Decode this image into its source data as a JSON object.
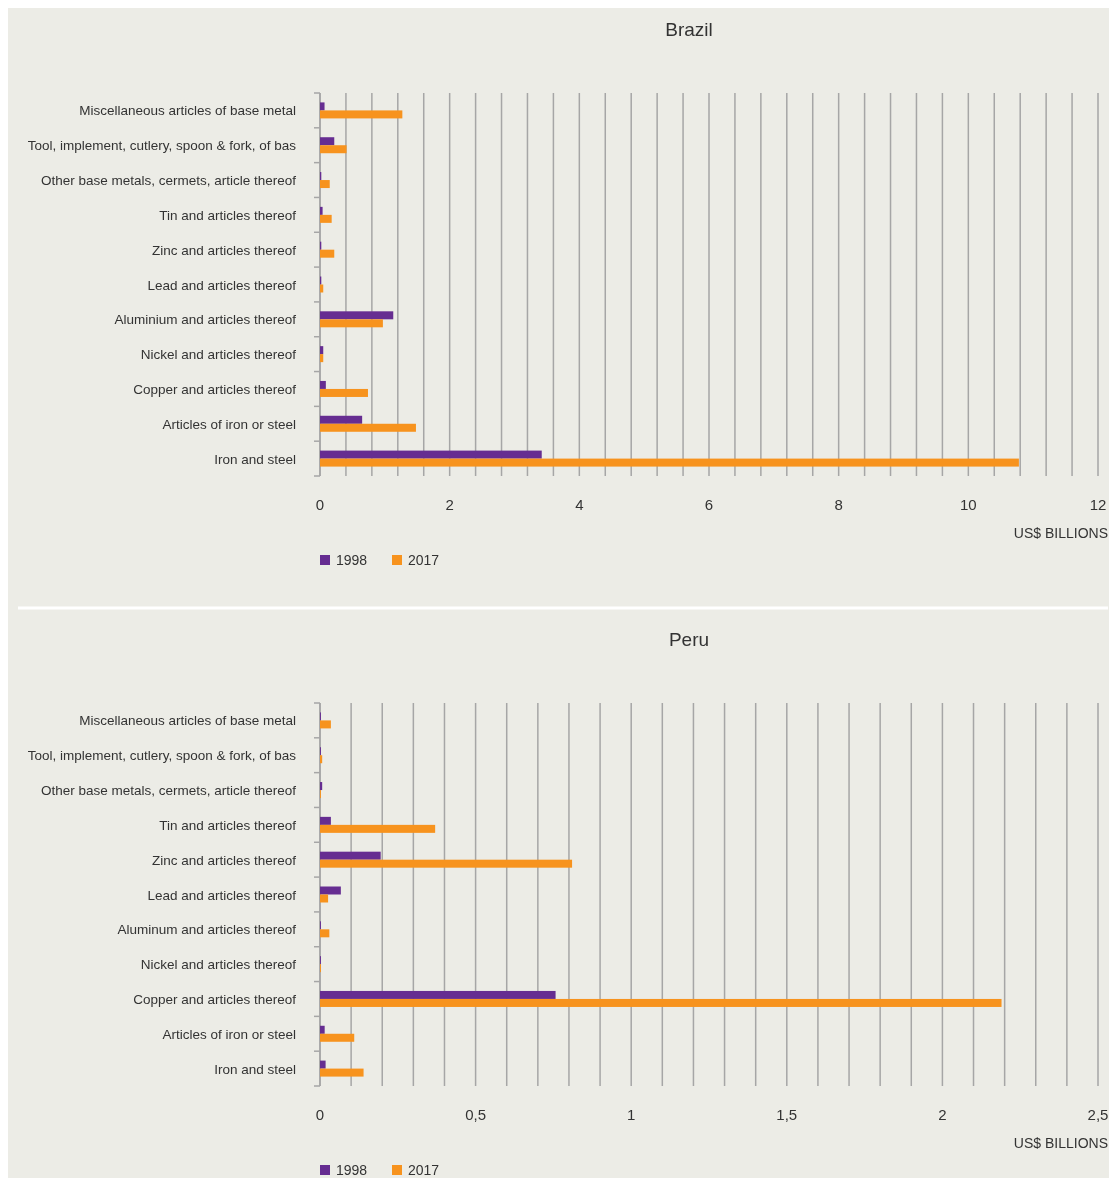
{
  "chart_data": [
    {
      "type": "bar",
      "orientation": "horizontal",
      "title": "Brazil",
      "xlabel": "US$ BILLIONS",
      "categories": [
        "Miscellaneous articles of base metal",
        "Tool, implement, cutlery, spoon & fork, of bas",
        "Other base metals, cermets, article thereof",
        "Tin and articles thereof",
        "Zinc and articles thereof",
        "Lead and articles thereof",
        "Aluminium and articles thereof",
        "Nickel and articles thereof",
        "Copper and articles thereof",
        "Articles of iron or steel",
        "Iron and steel"
      ],
      "series": [
        {
          "name": "1998",
          "color": "#662d91",
          "values": [
            0.07,
            0.22,
            0.02,
            0.04,
            0.02,
            0.02,
            1.13,
            0.05,
            0.09,
            0.65,
            3.42
          ]
        },
        {
          "name": "2017",
          "color": "#f7931e",
          "values": [
            1.27,
            0.41,
            0.15,
            0.18,
            0.22,
            0.05,
            0.97,
            0.05,
            0.74,
            1.48,
            10.78
          ]
        }
      ],
      "xlim": [
        0,
        12
      ],
      "xticks": [
        0,
        {
          "value": 0.4,
          "label": null
        },
        {
          "value": 0.8,
          "label": null
        },
        {
          "value": 1.2,
          "label": null
        },
        {
          "value": 1.6,
          "label": null
        },
        2,
        {
          "value": 2.4,
          "label": null
        },
        {
          "value": 2.8,
          "label": null
        },
        {
          "value": 3.2,
          "label": null
        },
        {
          "value": 3.6,
          "label": null
        },
        4,
        {
          "value": 4.4,
          "label": null
        },
        {
          "value": 4.8,
          "label": null
        },
        {
          "value": 5.2,
          "label": null
        },
        {
          "value": 5.6,
          "label": null
        },
        6,
        {
          "value": 6.4,
          "label": null
        },
        {
          "value": 6.8,
          "label": null
        },
        {
          "value": 7.2,
          "label": null
        },
        {
          "value": 7.6,
          "label": null
        },
        8,
        {
          "value": 8.4,
          "label": null
        },
        {
          "value": 8.8,
          "label": null
        },
        {
          "value": 9.2,
          "label": null
        },
        {
          "value": 9.6,
          "label": null
        },
        10,
        {
          "value": 10.4,
          "label": null
        },
        {
          "value": 10.8,
          "label": null
        },
        {
          "value": 11.2,
          "label": null
        },
        {
          "value": 11.6,
          "label": null
        },
        12
      ],
      "grid": "x",
      "legend": "bottom"
    },
    {
      "type": "bar",
      "orientation": "horizontal",
      "title": "Peru",
      "xlabel": "US$ BILLIONS",
      "categories": [
        "Miscellaneous articles of base metal",
        "Tool, implement, cutlery, spoon & fork, of bas",
        "Other base metals, cermets, article thereof",
        "Tin and articles thereof",
        "Zinc and articles thereof",
        "Lead and articles thereof",
        "Aluminum and articles thereof",
        "Nickel and articles thereof",
        "Copper and articles thereof",
        "Articles of iron or steel",
        "Iron and steel"
      ],
      "series": [
        {
          "name": "1998",
          "color": "#662d91",
          "values": [
            0.003,
            0.003,
            0.007,
            0.035,
            0.195,
            0.067,
            0.003,
            0.003,
            0.757,
            0.015,
            0.018
          ]
        },
        {
          "name": "2017",
          "color": "#f7931e",
          "values": [
            0.035,
            0.007,
            0.003,
            0.37,
            0.81,
            0.026,
            0.03,
            0.003,
            2.19,
            0.11,
            0.14
          ]
        }
      ],
      "xlim": [
        0,
        2.5
      ],
      "xticks": [
        0,
        {
          "value": 0.1,
          "label": null
        },
        {
          "value": 0.2,
          "label": null
        },
        {
          "value": 0.3,
          "label": null
        },
        {
          "value": 0.4,
          "label": null
        },
        {
          "value": 0.5,
          "label": "0,5"
        },
        {
          "value": 0.6,
          "label": null
        },
        {
          "value": 0.7,
          "label": null
        },
        {
          "value": 0.8,
          "label": null
        },
        {
          "value": 0.9,
          "label": null
        },
        1,
        {
          "value": 1.1,
          "label": null
        },
        {
          "value": 1.2,
          "label": null
        },
        {
          "value": 1.3,
          "label": null
        },
        {
          "value": 1.4,
          "label": null
        },
        {
          "value": 1.5,
          "label": "1,5"
        },
        {
          "value": 1.6,
          "label": null
        },
        {
          "value": 1.7,
          "label": null
        },
        {
          "value": 1.8,
          "label": null
        },
        {
          "value": 1.9,
          "label": null
        },
        2,
        {
          "value": 2.1,
          "label": null
        },
        {
          "value": 2.2,
          "label": null
        },
        {
          "value": 2.3,
          "label": null
        },
        {
          "value": 2.4,
          "label": null
        },
        {
          "value": 2.5,
          "label": "2,5"
        }
      ],
      "grid": "x",
      "legend": "bottom"
    }
  ]
}
